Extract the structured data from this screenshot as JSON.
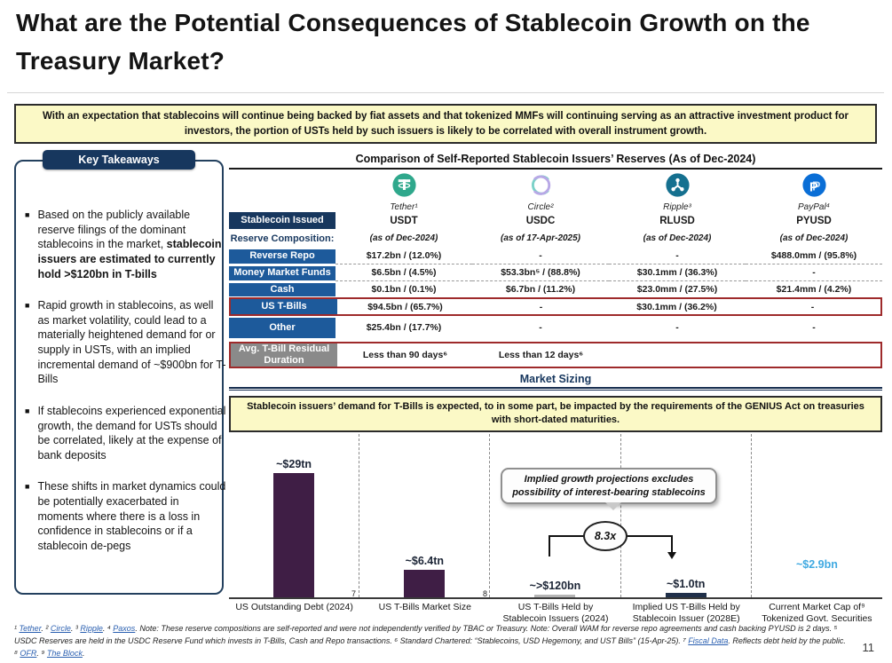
{
  "page": {
    "title": "What are the Potential Consequences of Stablecoin Growth on the Treasury Market?",
    "page_number": "11"
  },
  "colors": {
    "navy": "#17375e",
    "row_blue": "#1d5a9b",
    "gray_row": "#8a8a8a",
    "highlight_red": "#9e2a2b",
    "banner_yellow": "#fbf9c6",
    "bar_purple": "#3f1e45",
    "bar_navy": "#20304a",
    "bar_gray": "#b5b5b5",
    "cap_blue": "#3fa9e1",
    "link_blue": "#2a5fb0"
  },
  "top_banner": {
    "text": "With an expectation that stablecoins will continue being backed by fiat assets and that tokenized MMFs will continuing serving as an attractive investment product for investors, the portion of USTs held by such issuers is likely to be correlated with overall instrument growth."
  },
  "key_takeaways": {
    "title": "Key Takeaways",
    "items": [
      {
        "text": "Based on the publicly available reserve filings of the dominant stablecoins in the market, ",
        "bold": "stablecoin issuers are estimated to currently hold >$120bn in T-bills"
      },
      {
        "text": "Rapid growth in stablecoins, as well as market volatility, could lead to a materially heightened demand for or supply in USTs, with an implied incremental demand of ~$900bn for T-Bills",
        "bold": ""
      },
      {
        "text": "If stablecoins experienced exponential growth, the demand for USTs should be correlated, likely at the expense of bank deposits",
        "bold": ""
      },
      {
        "text": "These shifts in market dynamics could be potentially exacerbated in moments where there is a loss in confidence in stablecoins or if a stablecoin de-pegs",
        "bold": ""
      }
    ]
  },
  "reserves_table": {
    "title": "Comparison of Self-Reported Stablecoin Issuers’ Reserves (As of Dec-2024)",
    "issuers": [
      {
        "label": "Tether¹",
        "icon": "tether-logo"
      },
      {
        "label": "Circle²",
        "icon": "circle-logo"
      },
      {
        "label": "Ripple³",
        "icon": "ripple-logo"
      },
      {
        "label": "PayPal⁴",
        "icon": "paypal-logo"
      }
    ],
    "row_stablecoin": {
      "label": "Stablecoin Issued",
      "values": [
        "USDT",
        "USDC",
        "RLUSD",
        "PYUSD"
      ]
    },
    "row_asof": {
      "label": "Reserve Composition:",
      "values": [
        "(as of Dec-2024)",
        "(as of 17-Apr-2025)",
        "(as of Dec-2024)",
        "(as of Dec-2024)"
      ]
    },
    "rows": [
      {
        "label": "Reverse Repo",
        "values": [
          "$17.2bn / (12.0%)",
          "-",
          "-",
          "$488.0mm / (95.8%)"
        ]
      },
      {
        "label": "Money Market Funds",
        "values": [
          "$6.5bn / (4.5%)",
          "$53.3bn⁵ / (88.8%)",
          "$30.1mm / (36.3%)",
          "-"
        ]
      },
      {
        "label": "Cash",
        "values": [
          "$0.1bn / (0.1%)",
          "$6.7bn / (11.2%)",
          "$23.0mm / (27.5%)",
          "$21.4mm / (4.2%)"
        ]
      },
      {
        "label": "US T-Bills",
        "values": [
          "$94.5bn / (65.7%)",
          "-",
          "$30.1mm / (36.2%)",
          "-"
        ]
      },
      {
        "label": "Other",
        "values": [
          "$25.4bn / (17.7%)",
          "-",
          "-",
          "-"
        ]
      },
      {
        "label": "Avg. T-Bill Residual Duration",
        "values": [
          "Less than 90 days⁶",
          "Less than 12 days⁶",
          "",
          ""
        ]
      }
    ]
  },
  "market_sizing": {
    "header": "Market Sizing",
    "banner": "Stablecoin issuers’ demand for T-Bills is expected, to in some part, be impacted by the requirements of the GENIUS Act on treasuries with short-dated maturities.",
    "callout": "Implied growth projections excludes possibility of interest-bearing stablecoins",
    "multiplier": "8.3x"
  },
  "chart_data": {
    "type": "bar",
    "title": "Market Sizing",
    "categories": [
      "US Outstanding Debt (2024)",
      "US T-Bills Market Size",
      "US T-Bills Held by Stablecoin Issuers (2024)",
      "Implied US T-Bills Held by Stablecoin Issuer (2028E)",
      "Current Market Cap of⁹ Tokenized Govt. Securities"
    ],
    "values_usd_tn": [
      29,
      6.4,
      0.12,
      1.0,
      0.0029
    ],
    "labels": [
      "~$29tn",
      "~$6.4tn",
      "~>$120bn",
      "~$1.0tn",
      "~$2.9bn"
    ],
    "bar_colors": [
      "#3f1e45",
      "#3f1e45",
      "#b5b5b5",
      "#20304a",
      "transparent"
    ],
    "axis_sups": [
      "7",
      "8"
    ],
    "multiplier_annotation": "8.3x",
    "annotation": "Implied growth projections excludes possibility of interest-bearing stablecoins",
    "ylim": [
      0,
      30
    ],
    "grid": false,
    "ylabel": "",
    "xlabel": ""
  },
  "footnotes": {
    "segments": [
      {
        "t": "¹ ",
        "link": false
      },
      {
        "t": "Tether",
        "link": true
      },
      {
        "t": ". ² ",
        "link": false
      },
      {
        "t": "Circle",
        "link": true
      },
      {
        "t": ". ³ ",
        "link": false
      },
      {
        "t": "Ripple",
        "link": true
      },
      {
        "t": ". ⁴ ",
        "link": false
      },
      {
        "t": "Paxos",
        "link": true
      },
      {
        "t": ". Note: These reserve compositions are self-reported and were not independently verified by TBAC or Treasury. Note: Overall WAM for reverse repo agreements and cash backing PYUSD is 2 days. ⁵ USDC Reserves are held in the USDC Reserve Fund which invests in T-Bills, Cash and Repo transactions. ⁶ Standard Chartered: “Stablecoins, USD Hegemony, and UST Bills” (15-Apr-25). ⁷ ",
        "link": false
      },
      {
        "t": "Fiscal Data",
        "link": true
      },
      {
        "t": ". Reflects debt held by the public. ⁸ ",
        "link": false
      },
      {
        "t": "OFR",
        "link": true
      },
      {
        "t": ". ⁹ ",
        "link": false
      },
      {
        "t": "The Block",
        "link": true
      },
      {
        "t": ".",
        "link": false
      }
    ]
  }
}
